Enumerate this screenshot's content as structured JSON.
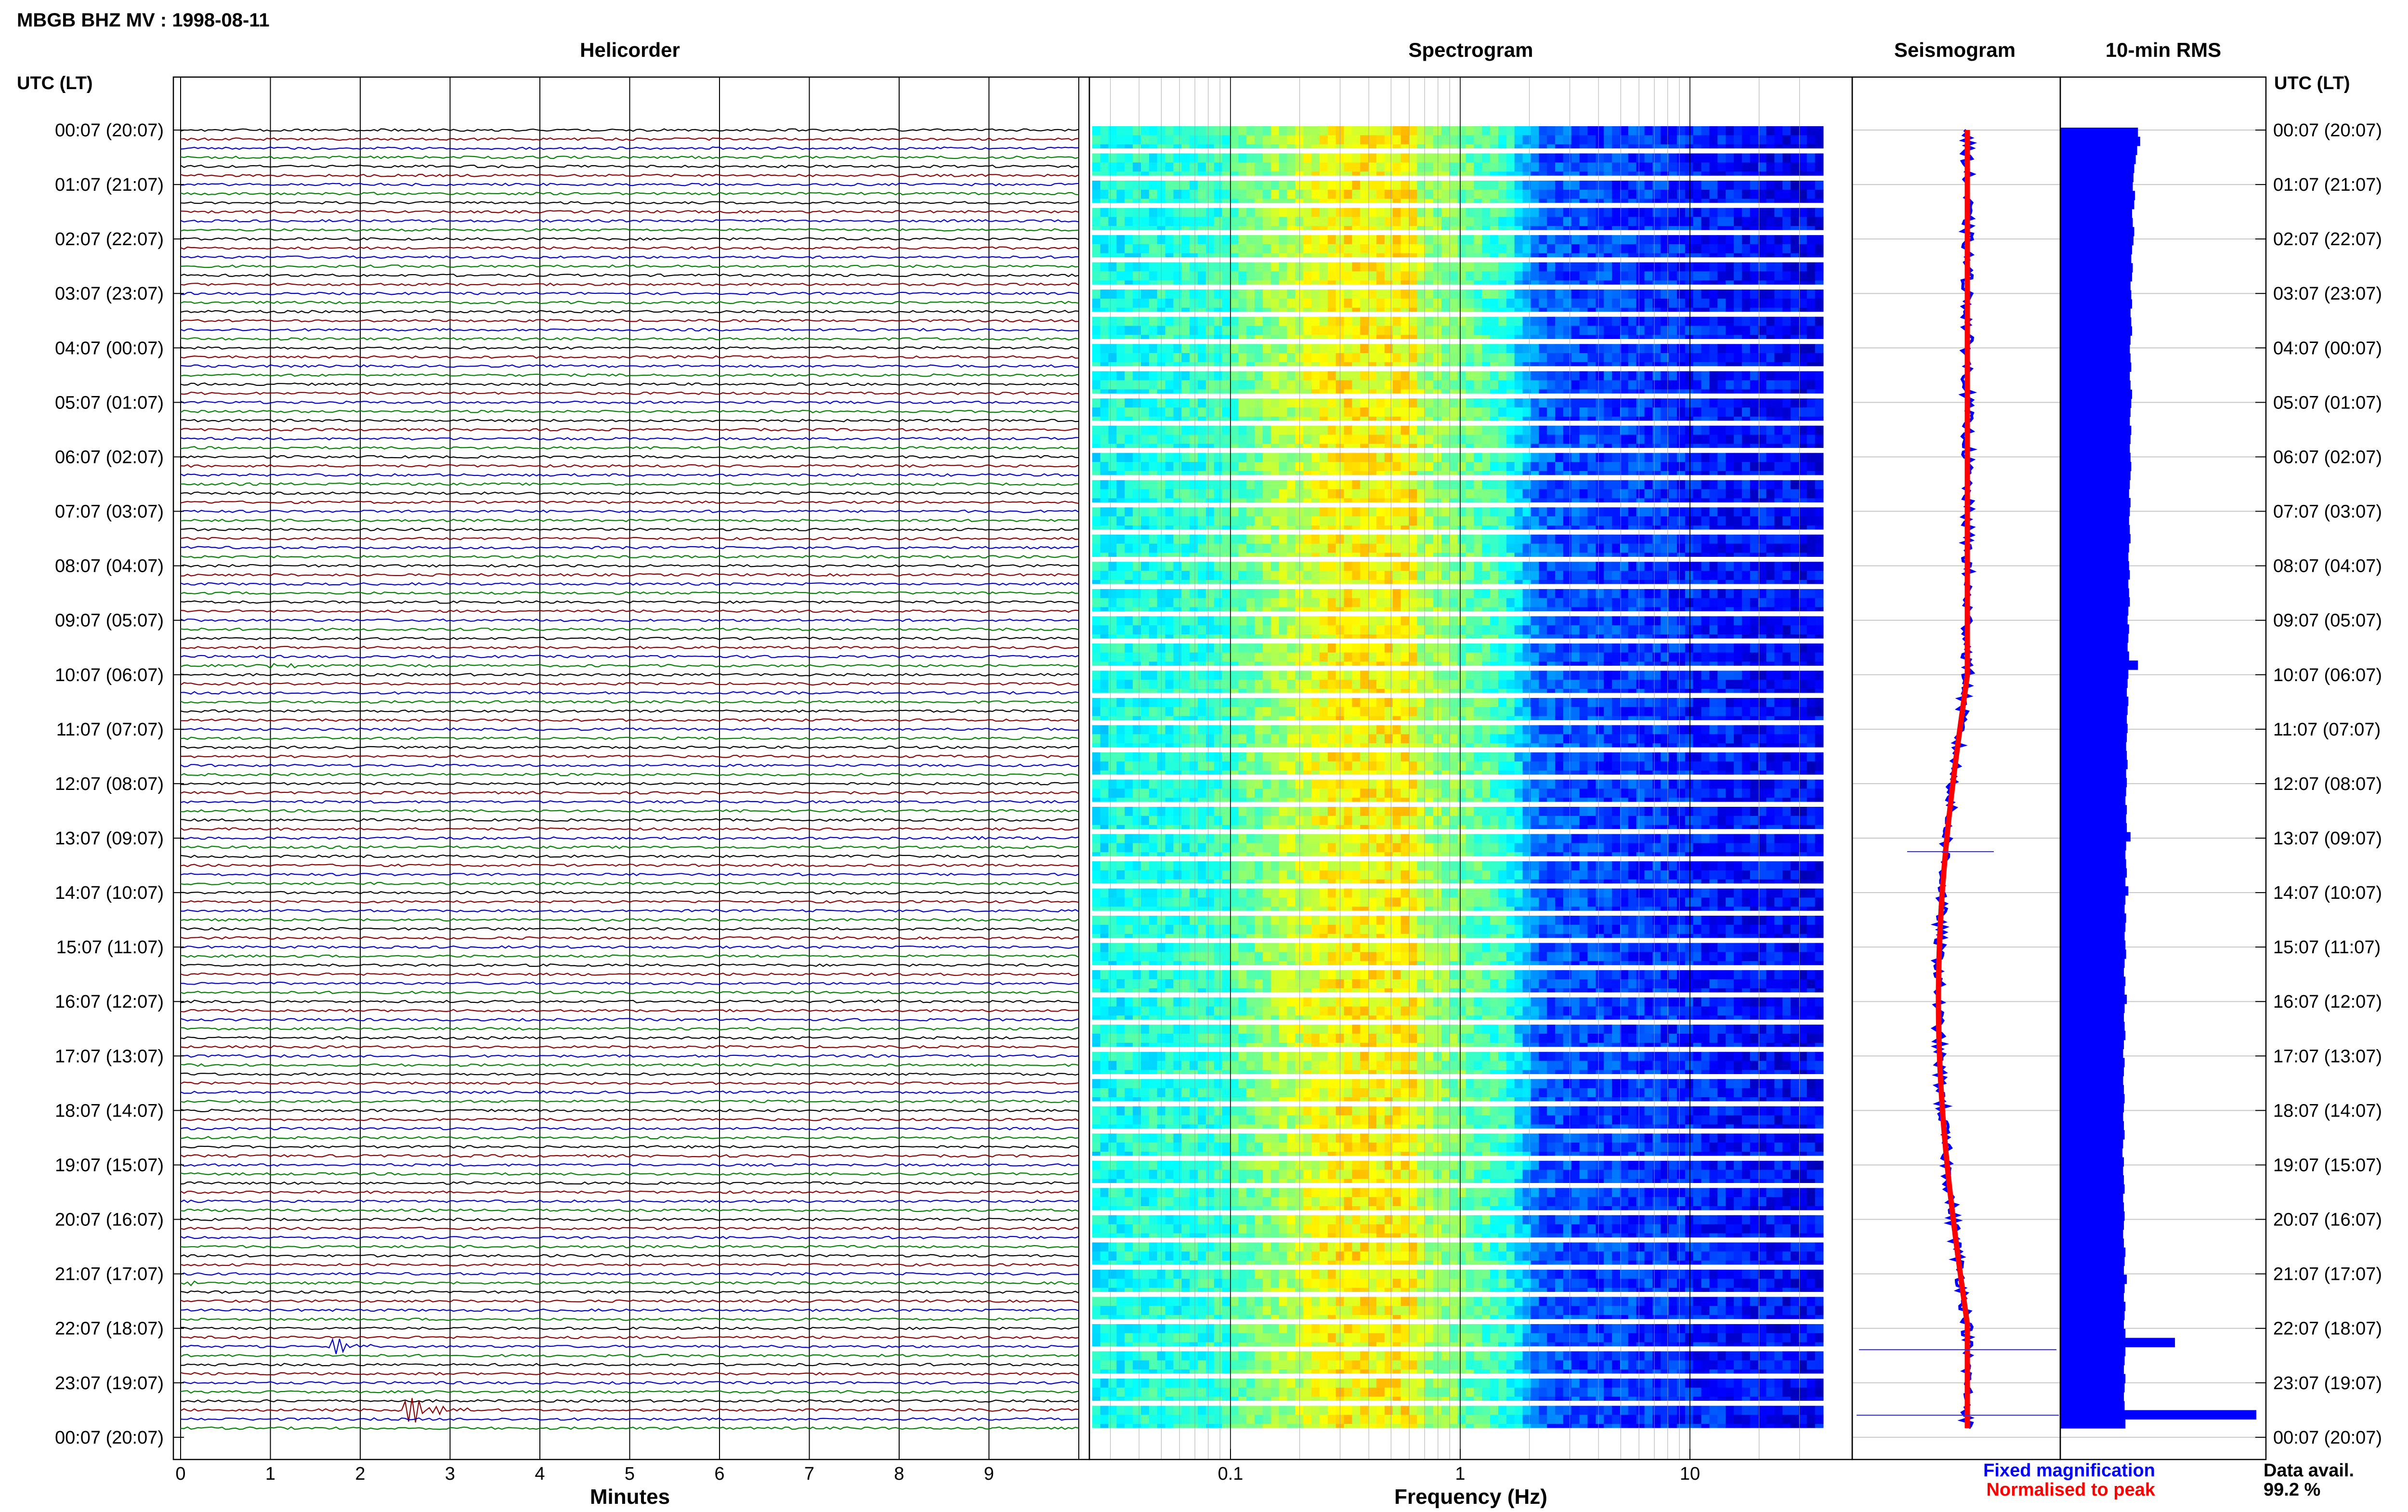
{
  "header": {
    "station_title": "MBGB BHZ MV : 1998-08-11",
    "left_axis_label": "UTC (LT)",
    "right_axis_label": "UTC (LT)"
  },
  "panels": {
    "helicorder_title": "Helicorder",
    "spectrogram_title": "Spectrogram",
    "seismogram_title": "Seismogram",
    "rms_title": "10-min RMS"
  },
  "time_labels": [
    "00:07 (20:07)",
    "01:07 (21:07)",
    "02:07 (22:07)",
    "03:07 (23:07)",
    "04:07 (00:07)",
    "05:07 (01:07)",
    "06:07 (02:07)",
    "07:07 (03:07)",
    "08:07 (04:07)",
    "09:07 (05:07)",
    "10:07 (06:07)",
    "11:07 (07:07)",
    "12:07 (08:07)",
    "13:07 (09:07)",
    "14:07 (10:07)",
    "15:07 (11:07)",
    "16:07 (12:07)",
    "17:07 (13:07)",
    "18:07 (14:07)",
    "19:07 (15:07)",
    "20:07 (16:07)",
    "21:07 (17:07)",
    "22:07 (18:07)",
    "23:07 (19:07)",
    "00:07 (20:07)"
  ],
  "legend": {
    "fixed_label": "Fixed magnification",
    "normalised_label": "Normalised to peak",
    "fixed_color": "#0000ff",
    "normalised_color": "#ff0000"
  },
  "availability": {
    "label": "Data avail.",
    "value": "99.2 %"
  },
  "colors": {
    "trace_cycle": [
      "#000000",
      "#8b0000",
      "#0000cd",
      "#008000"
    ],
    "rms_bar": "#0000ff",
    "grid": "#c8c8c8"
  },
  "chart_data": [
    {
      "type": "line",
      "name": "helicorder",
      "title": "Helicorder",
      "xlabel": "Minutes",
      "x_ticks": [
        0,
        1,
        2,
        3,
        4,
        5,
        6,
        7,
        8,
        9
      ],
      "xlim": [
        0,
        10
      ],
      "rows": 144,
      "events": [
        {
          "row": 59,
          "minute": 1.0,
          "duration_min": 1.0,
          "amplitude": 0.45
        },
        {
          "row": 78,
          "minute": 8.75,
          "duration_min": 0.25,
          "amplitude": 0.9
        },
        {
          "row": 84,
          "minute": 7.2,
          "duration_min": 0.5,
          "amplitude": 0.35
        },
        {
          "row": 96,
          "minute": 7.6,
          "duration_min": 0.3,
          "amplitude": 0.25
        },
        {
          "row": 127,
          "minute": 0.1,
          "duration_min": 0.15,
          "amplitude": 0.6
        },
        {
          "row": 134,
          "minute": 1.65,
          "duration_min": 0.4,
          "amplitude": 3.0
        },
        {
          "row": 141,
          "minute": 2.45,
          "duration_min": 0.55,
          "amplitude": 4.5
        }
      ]
    },
    {
      "type": "heatmap",
      "name": "spectrogram",
      "title": "Spectrogram",
      "xlabel": "Frequency (Hz)",
      "x_scale": "log",
      "xlim": [
        0.02,
        40
      ],
      "x_tick_labels": [
        "0.1",
        "1",
        "10"
      ],
      "x_tick_values": [
        0.1,
        1,
        10
      ],
      "rows": 144,
      "colormap": "jet"
    },
    {
      "type": "line",
      "name": "seismogram",
      "title": "Seismogram",
      "series": [
        {
          "name": "Fixed magnification",
          "color": "#0000ff"
        },
        {
          "name": "Normalised to peak",
          "color": "#ff0000"
        }
      ]
    },
    {
      "type": "bar",
      "name": "rms",
      "title": "10-min RMS",
      "orientation": "horizontal",
      "rows": 144,
      "values": [
        1.05,
        1.08,
        1.04,
        1.02,
        1.0,
        0.99,
        0.98,
        1.01,
        1.0,
        0.97,
        0.98,
        1.0,
        0.99,
        0.97,
        0.96,
        0.98,
        0.97,
        0.95,
        0.96,
        0.97,
        0.95,
        0.96,
        0.97,
        0.95,
        0.94,
        0.95,
        0.96,
        0.94,
        0.95,
        0.97,
        0.96,
        0.95,
        0.94,
        0.96,
        0.95,
        0.94,
        0.95,
        0.96,
        0.95,
        0.94,
        0.93,
        0.95,
        0.94,
        0.93,
        0.94,
        0.95,
        0.93,
        0.92,
        0.93,
        0.94,
        0.92,
        0.93,
        0.94,
        0.92,
        0.91,
        0.93,
        0.92,
        0.91,
        0.93,
        1.05,
        0.92,
        0.91,
        0.9,
        0.92,
        0.91,
        0.9,
        0.91,
        0.9,
        0.89,
        0.9,
        0.91,
        0.89,
        0.9,
        0.89,
        0.88,
        0.9,
        0.89,
        0.9,
        0.95,
        0.89,
        0.88,
        0.89,
        0.9,
        0.88,
        0.92,
        0.88,
        0.87,
        0.89,
        0.88,
        0.87,
        0.88,
        0.89,
        0.87,
        0.86,
        0.88,
        0.87,
        0.9,
        0.87,
        0.86,
        0.87,
        0.88,
        0.86,
        0.85,
        0.87,
        0.86,
        0.85,
        0.86,
        0.87,
        0.86,
        0.85,
        0.86,
        0.87,
        0.85,
        0.84,
        0.86,
        0.85,
        0.86,
        0.87,
        0.85,
        0.86,
        0.87,
        0.86,
        0.85,
        0.86,
        0.88,
        0.87,
        0.86,
        0.9,
        0.87,
        0.86,
        0.88,
        0.87,
        0.86,
        0.88,
        1.55,
        0.88,
        0.87,
        0.86,
        0.88,
        0.87,
        0.86,
        0.87,
        2.65,
        0.88
      ]
    }
  ]
}
